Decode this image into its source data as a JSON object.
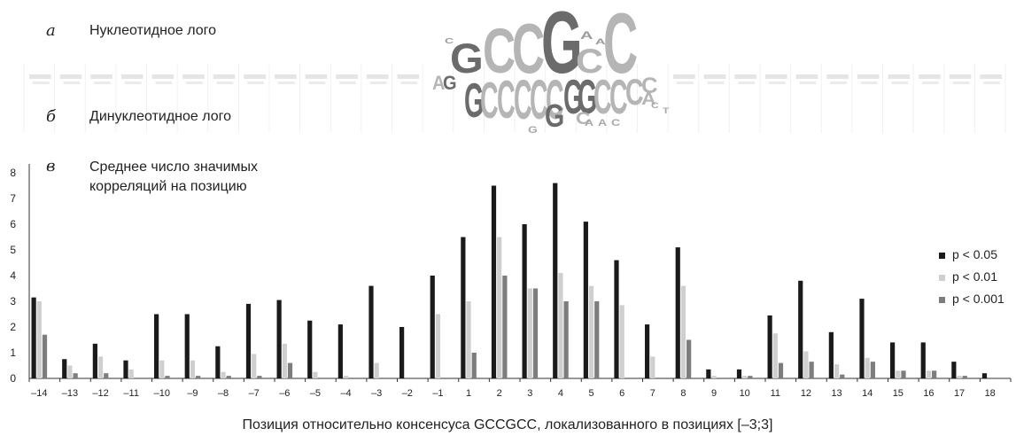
{
  "panel_a": {
    "letter": "а",
    "title": "Нуклеотидное лого"
  },
  "panel_b": {
    "letter": "б",
    "title": "Динуклеотидное лого"
  },
  "panel_c": {
    "letter": "в",
    "title_lines": [
      "Среднее число значимых",
      "корреляций на позицию"
    ]
  },
  "nucleotide_logo": {
    "main_letters": [
      {
        "char": "G",
        "shade": "dark"
      },
      {
        "char": "C",
        "shade": "light"
      },
      {
        "char": "C",
        "shade": "light"
      },
      {
        "char": "G",
        "shade": "dark"
      },
      {
        "char": "C",
        "shade": "light"
      },
      {
        "char": "C",
        "shade": "light"
      }
    ],
    "minor_letters": [
      "A",
      "A",
      "C"
    ]
  },
  "dinucleotide_logo": {
    "main_letters": [
      {
        "char": "A",
        "shade": "light"
      },
      {
        "char": "G",
        "shade": "dark"
      },
      {
        "char": "G",
        "shade": "dark"
      },
      {
        "char": "C",
        "shade": "light"
      },
      {
        "char": "C",
        "shade": "light"
      },
      {
        "char": "C",
        "shade": "light"
      },
      {
        "char": "C",
        "shade": "light"
      },
      {
        "char": "C",
        "shade": "light"
      },
      {
        "char": "G",
        "shade": "dark"
      },
      {
        "char": "G",
        "shade": "dark"
      },
      {
        "char": "G",
        "shade": "dark"
      },
      {
        "char": "C",
        "shade": "light"
      },
      {
        "char": "C",
        "shade": "light"
      },
      {
        "char": "C",
        "shade": "light"
      },
      {
        "char": "C",
        "shade": "light"
      },
      {
        "char": "C",
        "shade": "light"
      },
      {
        "char": "A",
        "shade": "light"
      }
    ],
    "minor_text": [
      "G",
      "A",
      "A",
      "C",
      "C",
      "T"
    ]
  },
  "colors": {
    "p005": "#1a1a1a",
    "p001": "#cfcfcf",
    "p0001": "#7d7d7d",
    "logo_dark": "#6b6b6b",
    "logo_light": "#b5b5b5"
  },
  "chart_data": {
    "type": "bar",
    "title": "Среднее число значимых корреляций на позицию",
    "xlabel": "Позиция относительно консенсуса GCCGCC, локализованного в позициях [–3;3]",
    "ylabel": "",
    "ylim": [
      0,
      8
    ],
    "yticks": [
      "0",
      "1",
      "2",
      "3",
      "4",
      "5",
      "6",
      "7",
      "8"
    ],
    "legend_position": "right",
    "categories": [
      "–14",
      "–13",
      "–12",
      "–11",
      "–10",
      "–9",
      "–8",
      "–7",
      "–6",
      "–5",
      "–4",
      "–3",
      "–2",
      "–1",
      "1",
      "2",
      "3",
      "4",
      "5",
      "6",
      "7",
      "8",
      "9",
      "10",
      "11",
      "12",
      "13",
      "14",
      "15",
      "16",
      "17",
      "18"
    ],
    "series": [
      {
        "name": "p < 0.05",
        "values": [
          3.15,
          0.75,
          1.35,
          0.7,
          2.5,
          2.5,
          1.25,
          2.9,
          3.05,
          2.25,
          2.1,
          3.6,
          2.0,
          4.0,
          5.5,
          7.5,
          6.0,
          7.6,
          6.1,
          4.6,
          2.1,
          5.1,
          0.35,
          0.35,
          2.45,
          3.8,
          1.8,
          3.1,
          1.4,
          1.4,
          0.65,
          0.2
        ]
      },
      {
        "name": "p < 0.01",
        "values": [
          3.0,
          0.5,
          0.85,
          0.35,
          0.7,
          0.7,
          0.25,
          0.95,
          1.35,
          0.25,
          0.1,
          0.6,
          0.0,
          2.5,
          3.0,
          5.5,
          3.5,
          4.1,
          3.6,
          2.85,
          0.85,
          3.6,
          0.1,
          0.1,
          1.75,
          1.05,
          0.55,
          0.8,
          0.3,
          0.3,
          0.1,
          0.0
        ]
      },
      {
        "name": "p < 0.001",
        "values": [
          1.7,
          0.2,
          0.2,
          0.0,
          0.1,
          0.1,
          0.1,
          0.1,
          0.6,
          0.0,
          0.0,
          0.0,
          0.0,
          0.0,
          1.0,
          4.0,
          3.5,
          3.0,
          3.0,
          0.0,
          0.0,
          1.5,
          0.0,
          0.1,
          0.6,
          0.65,
          0.15,
          0.65,
          0.3,
          0.3,
          0.1,
          0.0
        ]
      }
    ]
  }
}
